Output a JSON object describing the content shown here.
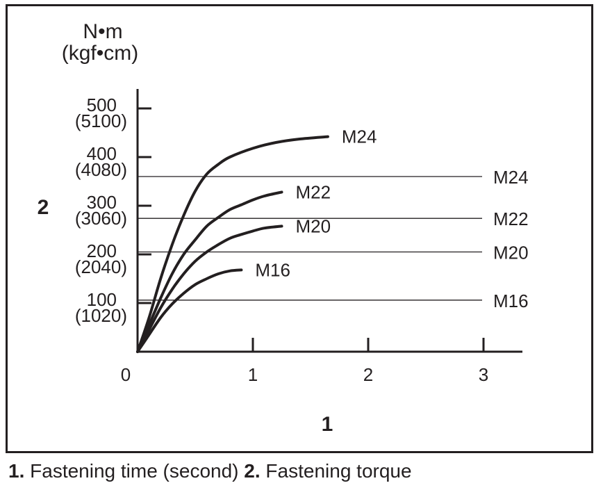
{
  "chart_data": {
    "type": "line",
    "unit_label_top": "N•m",
    "unit_label_bottom": "(kgf•cm)",
    "x_axis_marker": "1",
    "y_axis_marker": "2",
    "xlim": [
      0,
      3.3
    ],
    "ylim": [
      0,
      540
    ],
    "x_ticks": [
      {
        "value": 0,
        "label": "0"
      },
      {
        "value": 1,
        "label": "1"
      },
      {
        "value": 2,
        "label": "2"
      },
      {
        "value": 3,
        "label": "3"
      }
    ],
    "y_ticks": [
      {
        "value": 100,
        "label": "100",
        "sublabel": "(1020)"
      },
      {
        "value": 200,
        "label": "200",
        "sublabel": "(2040)"
      },
      {
        "value": 300,
        "label": "300",
        "sublabel": "(3060)"
      },
      {
        "value": 400,
        "label": "400",
        "sublabel": "(4080)"
      },
      {
        "value": 500,
        "label": "500",
        "sublabel": "(5100)"
      }
    ],
    "series": [
      {
        "name": "M24",
        "points": [
          [
            0,
            0
          ],
          [
            0.1,
            70
          ],
          [
            0.2,
            150
          ],
          [
            0.3,
            220
          ],
          [
            0.4,
            280
          ],
          [
            0.5,
            330
          ],
          [
            0.6,
            365
          ],
          [
            0.7,
            385
          ],
          [
            0.8,
            400
          ],
          [
            1.0,
            418
          ],
          [
            1.2,
            430
          ],
          [
            1.4,
            437
          ],
          [
            1.65,
            442
          ]
        ]
      },
      {
        "name": "M22",
        "points": [
          [
            0,
            0
          ],
          [
            0.1,
            55
          ],
          [
            0.2,
            110
          ],
          [
            0.3,
            160
          ],
          [
            0.4,
            200
          ],
          [
            0.5,
            230
          ],
          [
            0.6,
            258
          ],
          [
            0.7,
            276
          ],
          [
            0.8,
            292
          ],
          [
            0.9,
            302
          ],
          [
            1.0,
            312
          ],
          [
            1.1,
            320
          ],
          [
            1.25,
            328
          ]
        ]
      },
      {
        "name": "M20",
        "points": [
          [
            0,
            0
          ],
          [
            0.1,
            45
          ],
          [
            0.2,
            90
          ],
          [
            0.3,
            128
          ],
          [
            0.4,
            160
          ],
          [
            0.5,
            186
          ],
          [
            0.6,
            205
          ],
          [
            0.7,
            220
          ],
          [
            0.8,
            233
          ],
          [
            0.9,
            241
          ],
          [
            1.0,
            248
          ],
          [
            1.1,
            254
          ],
          [
            1.25,
            258
          ]
        ]
      },
      {
        "name": "M16",
        "points": [
          [
            0,
            0
          ],
          [
            0.1,
            35
          ],
          [
            0.2,
            70
          ],
          [
            0.3,
            98
          ],
          [
            0.4,
            120
          ],
          [
            0.5,
            138
          ],
          [
            0.6,
            150
          ],
          [
            0.7,
            160
          ],
          [
            0.8,
            166
          ],
          [
            0.9,
            168
          ]
        ]
      }
    ],
    "reference_lines": [
      {
        "name": "M24",
        "value": 360
      },
      {
        "name": "M22",
        "value": 274
      },
      {
        "name": "M20",
        "value": 205
      },
      {
        "name": "M16",
        "value": 106
      }
    ]
  },
  "caption": {
    "num1": "1.",
    "text1": " Fastening time (second) ",
    "num2": "2.",
    "text2": " Fastening torque"
  }
}
